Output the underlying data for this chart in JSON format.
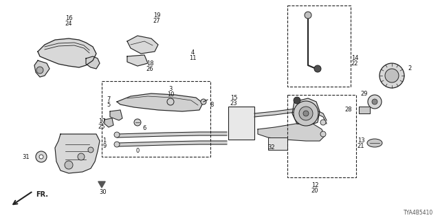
{
  "bg_color": "#ffffff",
  "line_color": "#222222",
  "diagram_id": "TYA4B5410",
  "figsize": [
    6.4,
    3.2
  ],
  "dpi": 100
}
